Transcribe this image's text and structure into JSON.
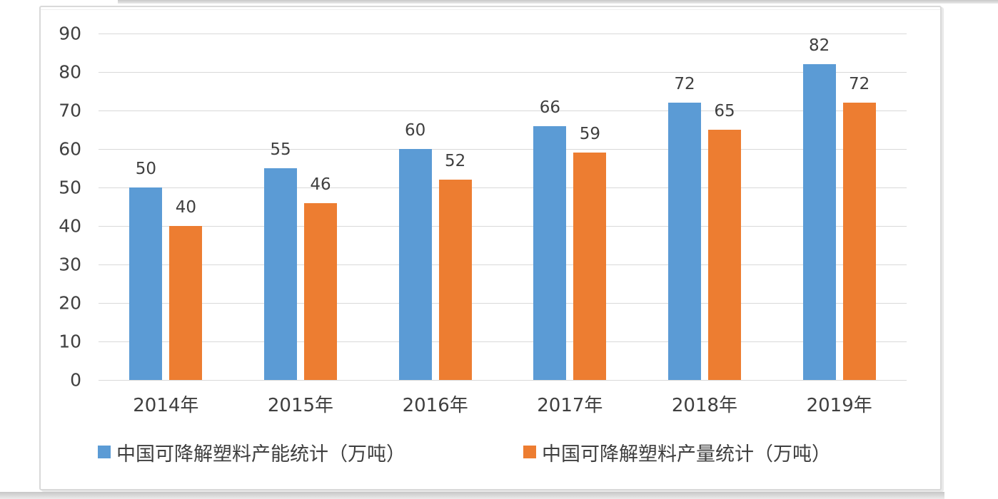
{
  "chart_data": {
    "type": "bar",
    "categories": [
      "2014年",
      "2015年",
      "2016年",
      "2017年",
      "2018年",
      "2019年"
    ],
    "series": [
      {
        "name": "中国可降解塑料产能统计（万吨）",
        "color": "#5B9BD5",
        "values": [
          50,
          55,
          60,
          66,
          72,
          82
        ]
      },
      {
        "name": "中国可降解塑料产量统计（万吨）",
        "color": "#ED7D31",
        "values": [
          40,
          46,
          52,
          59,
          65,
          72
        ]
      }
    ],
    "title": "",
    "xlabel": "",
    "ylabel": "",
    "ylim": [
      0,
      90
    ],
    "yticks": [
      0,
      10,
      20,
      30,
      40,
      50,
      60,
      70,
      80,
      90
    ],
    "grid": true,
    "legend_position": "bottom",
    "data_labels": true
  },
  "palette": {
    "series1": "#5B9BD5",
    "series2": "#ED7D31",
    "gridline": "#D9D9D9",
    "axis_text": "#404040",
    "frame_border": "#D9D9D9",
    "background": "#FFFFFF"
  }
}
